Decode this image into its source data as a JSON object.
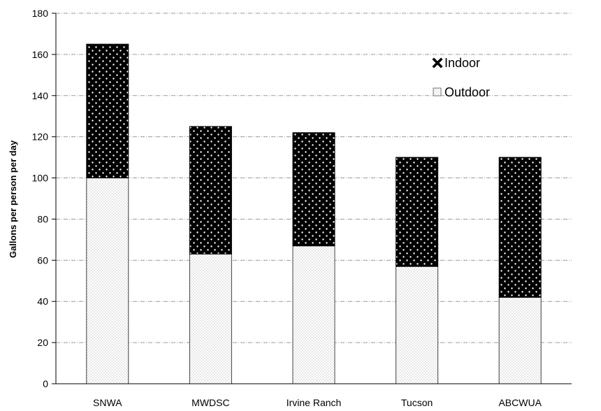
{
  "chart_data": {
    "type": "bar",
    "stacked": true,
    "categories": [
      "SNWA",
      "MWDSC",
      "Irvine Ranch",
      "Tucson",
      "ABCWUA"
    ],
    "series": [
      {
        "name": "Outdoor",
        "values": [
          100,
          63,
          67,
          57,
          42
        ]
      },
      {
        "name": "Indoor",
        "values": [
          65,
          62,
          55,
          53,
          68
        ]
      }
    ],
    "title": "",
    "xlabel": "",
    "ylabel": "Gallons per person per day",
    "ylim": [
      0,
      180
    ],
    "yticks": [
      0,
      20,
      40,
      60,
      80,
      100,
      120,
      140,
      160,
      180
    ],
    "grid": true,
    "legend": "upper-right",
    "legend_items": [
      {
        "label": "Indoor",
        "pattern": "dots-on-black"
      },
      {
        "label": "Outdoor",
        "pattern": "fine-dots-on-white"
      }
    ],
    "colors": {
      "indoor_fill": "#000000",
      "indoor_dots": "#ffffff",
      "outdoor_fill": "#ffffff",
      "outdoor_dots": "#8a8a8a",
      "grid": "#9a9a9a",
      "axis": "#000000"
    }
  }
}
